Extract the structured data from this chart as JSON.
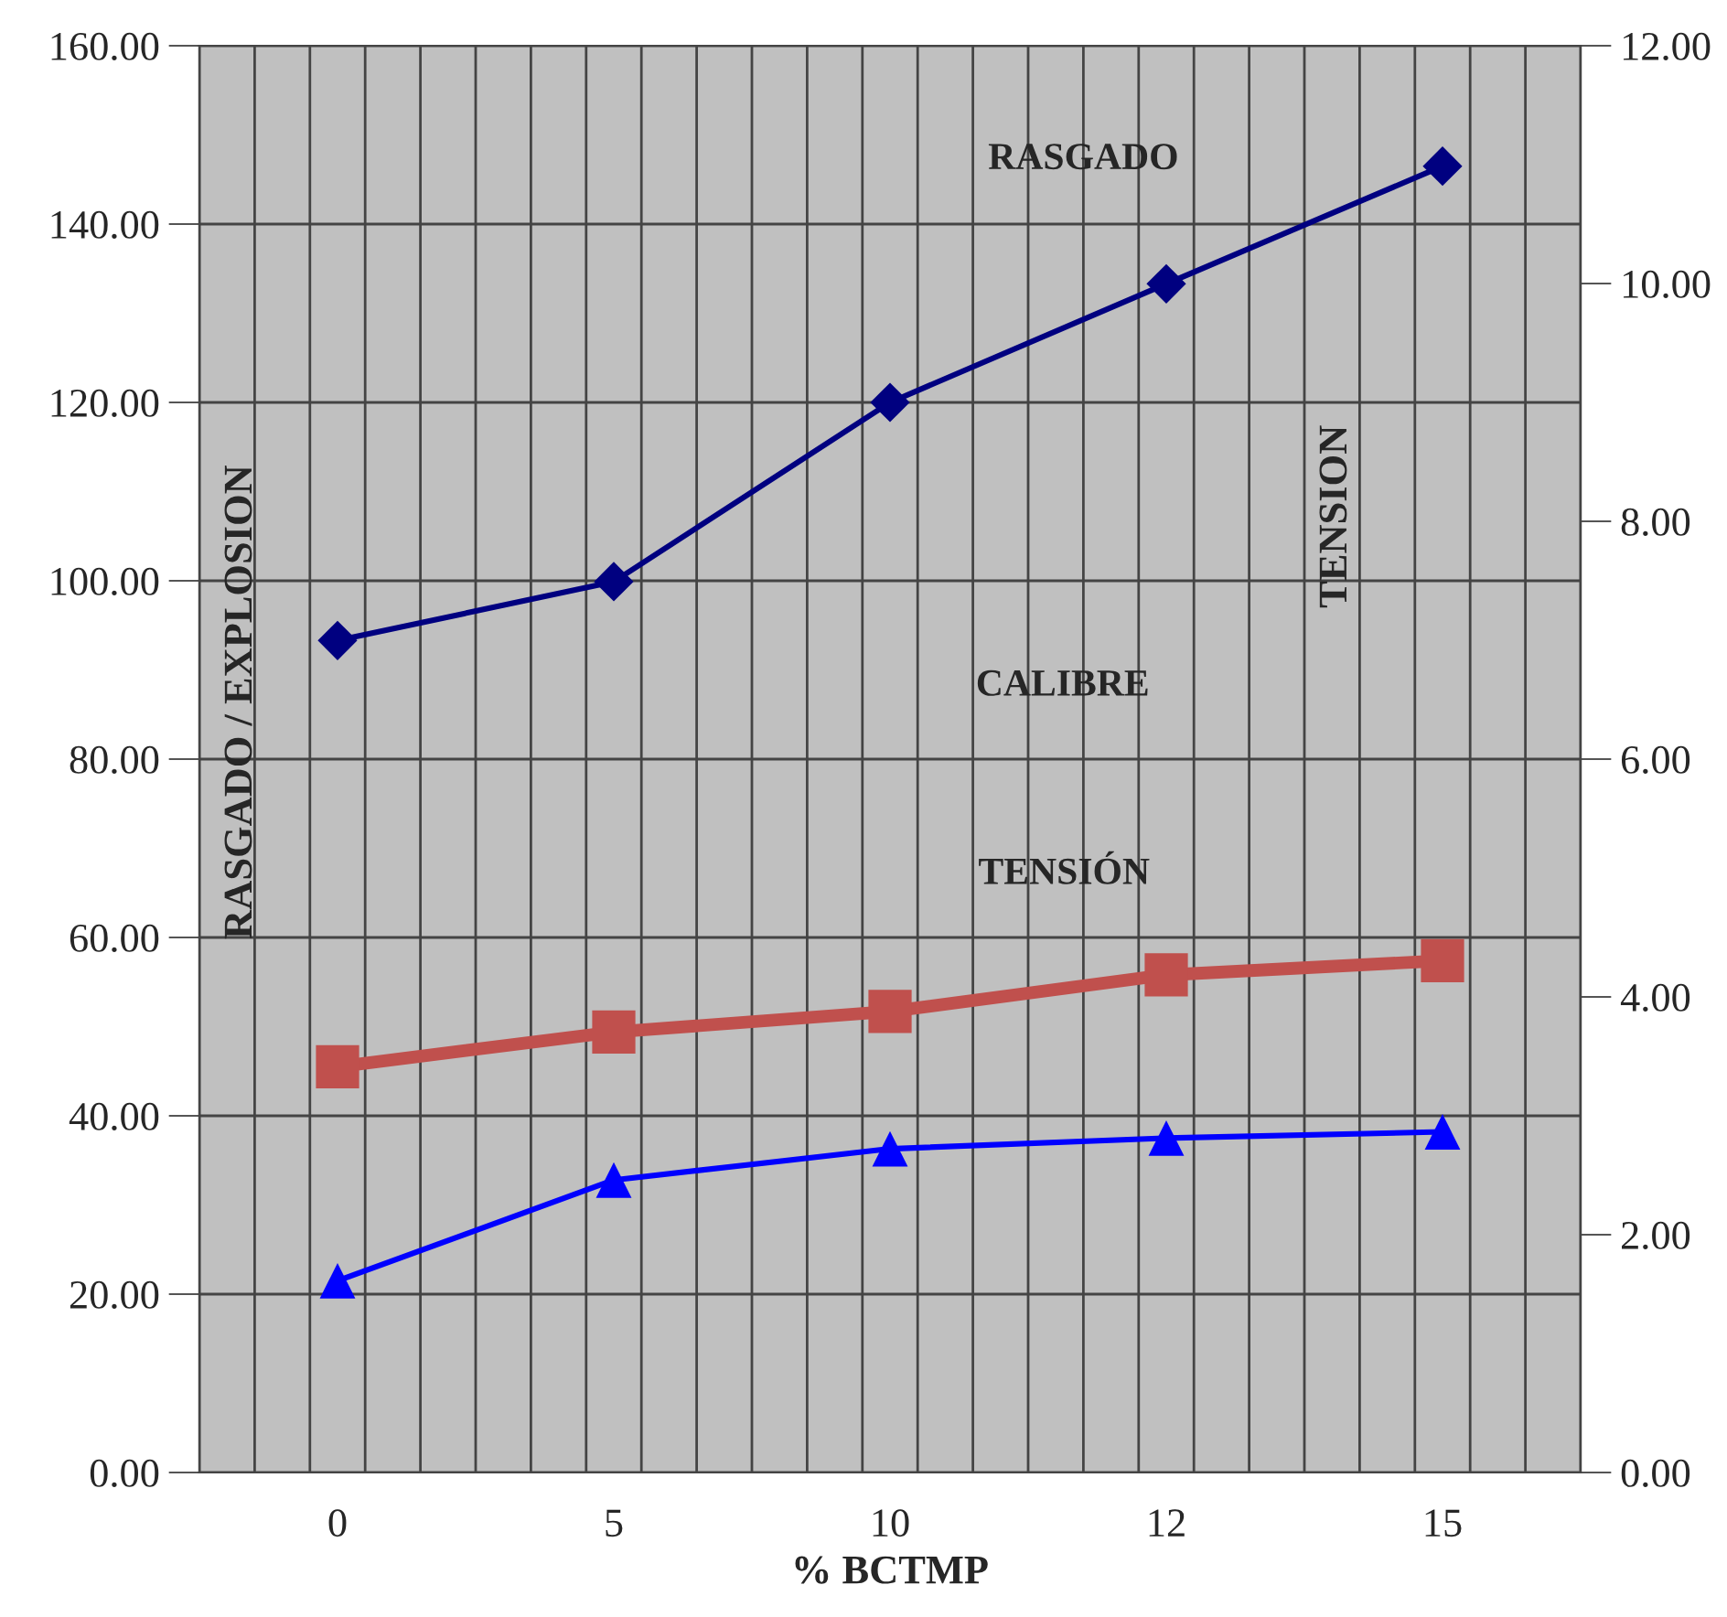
{
  "chart_data": {
    "type": "line",
    "xlabel": "% BCTMP",
    "ylabel": "RASGADO / EXPLOSION",
    "y2label": "TENSION",
    "categories": [
      "0",
      "5",
      "10",
      "12",
      "15"
    ],
    "series": [
      {
        "color": "#000080",
        "marker": "diamond",
        "values": [
          93.3,
          99.9,
          120.0,
          133.3,
          146.5
        ]
      },
      {
        "color": "#c0504d",
        "marker": "square",
        "values": [
          45.5,
          49.4,
          51.7,
          55.8,
          57.4
        ]
      },
      {
        "color": "#0000ff",
        "marker": "triangle",
        "values": [
          21.5,
          32.8,
          36.3,
          37.5,
          38.2
        ]
      }
    ],
    "ylim": [
      0,
      160
    ],
    "yticks": [
      {
        "value": 0,
        "label": "0.00"
      },
      {
        "value": 20,
        "label": "20.00"
      },
      {
        "value": 40,
        "label": "40.00"
      },
      {
        "value": 60,
        "label": "60.00"
      },
      {
        "value": 80,
        "label": "80.00"
      },
      {
        "value": 100,
        "label": "100.00"
      },
      {
        "value": 120,
        "label": "120.00"
      },
      {
        "value": 140,
        "label": "140.00"
      },
      {
        "value": 160,
        "label": "160.00"
      }
    ],
    "y2lim": [
      0,
      12
    ],
    "y2ticks": [
      {
        "value": 0,
        "label": "0.00"
      },
      {
        "value": 2,
        "label": "2.00"
      },
      {
        "value": 4,
        "label": "4.00"
      },
      {
        "value": 6,
        "label": "6.00"
      },
      {
        "value": 8,
        "label": "8.00"
      },
      {
        "value": 10,
        "label": "10.00"
      },
      {
        "value": 12,
        "label": "12.00"
      }
    ],
    "annotations": [
      "RASGADO",
      "CALIBRE",
      "TENSIÓN"
    ],
    "grid": true,
    "legend": false
  }
}
